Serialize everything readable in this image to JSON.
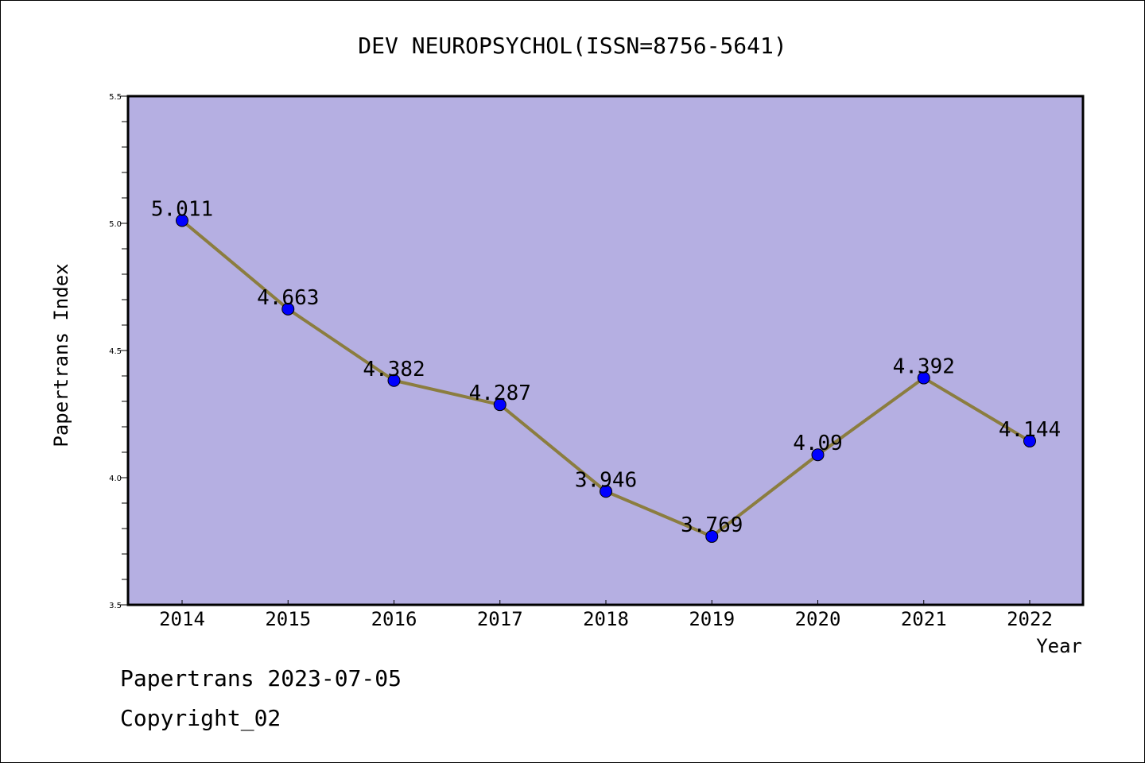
{
  "chart_data": {
    "type": "line",
    "title": "DEV NEUROPSYCHOL(ISSN=8756-5641)",
    "xlabel": "Year",
    "ylabel": "Papertrans Index",
    "categories": [
      "2014",
      "2015",
      "2016",
      "2017",
      "2018",
      "2019",
      "2020",
      "2021",
      "2022"
    ],
    "series": [
      {
        "values": [
          5.011,
          4.663,
          4.382,
          4.287,
          3.946,
          3.769,
          4.09,
          4.392,
          4.144
        ],
        "labels": [
          "5.011",
          "4.663",
          "4.382",
          "4.287",
          "3.946",
          "3.769",
          "4.09",
          "4.392",
          "4.144"
        ]
      }
    ],
    "ylim": [
      3.5,
      5.5
    ],
    "yticks": [
      "3.5",
      "4.0",
      "4.5",
      "5.0",
      "5.5"
    ],
    "grid": false,
    "colors": {
      "plot_background": "#b5afe2",
      "line": "#8b7d3f",
      "marker": "#0000ff"
    }
  },
  "footer": {
    "line1": "Papertrans 2023-07-05",
    "line2": "Copyright_02"
  }
}
